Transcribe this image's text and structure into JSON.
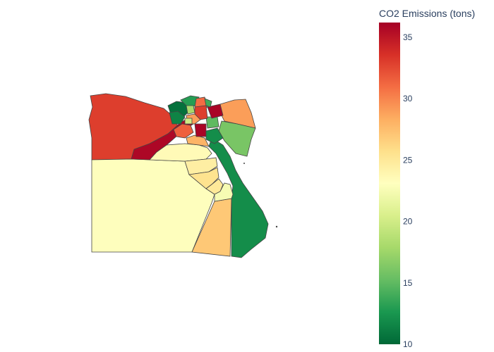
{
  "colorbar": {
    "title": "CO2 Emissions (tons)",
    "range": [
      10,
      36.2
    ],
    "ticks": [
      10,
      15,
      20,
      25,
      30,
      35
    ],
    "colorscale": [
      "#006837",
      "#1a9850",
      "#66bd63",
      "#a6d96a",
      "#d9ef8b",
      "#ffffbf",
      "#fee08b",
      "#fdae61",
      "#f46d43",
      "#d73027",
      "#a50026"
    ]
  },
  "chart_data": {
    "type": "choropleth",
    "value_label": "CO2 Emissions (tons)",
    "regions": [
      {
        "id": "r-west",
        "value": 33.0
      },
      {
        "id": "r-south-desert",
        "value": 23.0
      },
      {
        "id": "r-south-east",
        "value": 27.0
      },
      {
        "id": "r-red-sea",
        "value": 12.0
      },
      {
        "id": "r-giza-strip",
        "value": 35.8
      },
      {
        "id": "r-north-sinai",
        "value": 29.0
      },
      {
        "id": "r-south-sinai",
        "value": 16.0
      },
      {
        "id": "r-beni-suef",
        "value": 23.5
      },
      {
        "id": "r-minya",
        "value": 24.5
      },
      {
        "id": "r-asyut",
        "value": 25.5
      },
      {
        "id": "r-sohag",
        "value": 25.0
      },
      {
        "id": "r-qena",
        "value": 22.5
      },
      {
        "id": "r-fayoum",
        "value": 28.0
      },
      {
        "id": "r-menoufia",
        "value": 31.5
      },
      {
        "id": "r-cairo",
        "value": 36.0
      },
      {
        "id": "r-suez",
        "value": 12.0
      },
      {
        "id": "r-ismailia",
        "value": 15.0
      },
      {
        "id": "r-sharqia",
        "value": 36.0
      },
      {
        "id": "r-alexandria",
        "value": 10.5
      },
      {
        "id": "r-beheira",
        "value": 13.0
      },
      {
        "id": "r-kafr",
        "value": 11.5
      },
      {
        "id": "r-gharbia",
        "value": 18.0
      },
      {
        "id": "r-dakahlia",
        "value": 31.0
      },
      {
        "id": "r-damietta",
        "value": 14.0
      },
      {
        "id": "r-port-said",
        "value": 33.0
      },
      {
        "id": "r-qalyubia",
        "value": 29.0
      },
      {
        "id": "r-beheira-south",
        "value": 20.0
      }
    ]
  }
}
